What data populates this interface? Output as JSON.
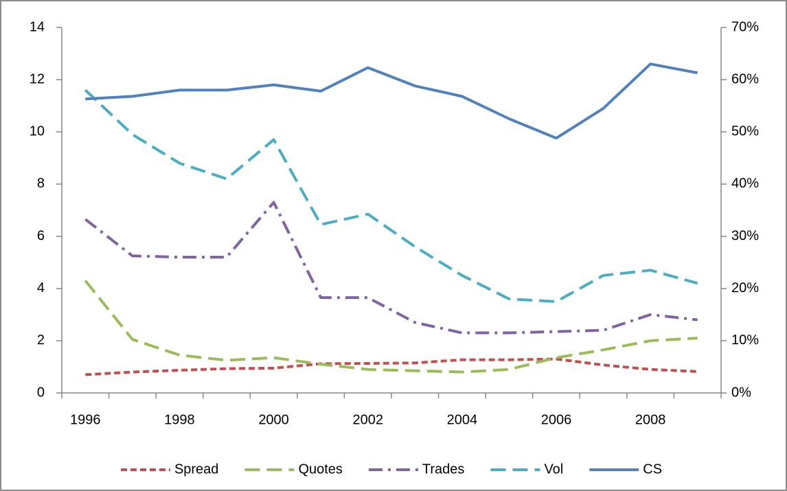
{
  "chart_data": {
    "type": "line",
    "categories": [
      "1996",
      null,
      "1998",
      null,
      "2000",
      null,
      "2002",
      null,
      "2004",
      null,
      "2006",
      null,
      "2008",
      null
    ],
    "ylim": [
      0,
      14
    ],
    "yticks": [
      0,
      2,
      4,
      6,
      8,
      10,
      12,
      14
    ],
    "y2lim": [
      0,
      70
    ],
    "y2ticks": [
      {
        "value": 0,
        "label": "0%"
      },
      {
        "value": 10,
        "label": "10%"
      },
      {
        "value": 20,
        "label": "20%"
      },
      {
        "value": 30,
        "label": "30%"
      },
      {
        "value": 40,
        "label": "40%"
      },
      {
        "value": 50,
        "label": "50%"
      },
      {
        "value": 60,
        "label": "60%"
      },
      {
        "value": 70,
        "label": "70%"
      }
    ],
    "legend": "bottom",
    "series": [
      {
        "name": "Spread",
        "color": "#c0504d",
        "dash": "dash",
        "values": [
          0.7,
          0.8,
          0.87,
          0.93,
          0.95,
          1.12,
          1.13,
          1.15,
          1.27,
          1.27,
          1.3,
          1.07,
          0.9,
          0.82
        ]
      },
      {
        "name": "Quotes",
        "color": "#9bbb59",
        "dash": "long-dash",
        "values": [
          4.3,
          2.05,
          1.45,
          1.25,
          1.35,
          1.1,
          0.9,
          0.85,
          0.8,
          0.9,
          1.35,
          1.65,
          2.0,
          2.1
        ]
      },
      {
        "name": "Trades",
        "color": "#8064a2",
        "dash": "dash-dot",
        "values": [
          6.65,
          5.25,
          5.2,
          5.2,
          7.3,
          3.65,
          3.65,
          2.7,
          2.3,
          2.3,
          2.35,
          2.4,
          3.0,
          2.8
        ]
      },
      {
        "name": "Vol",
        "color": "#4bacc6",
        "dash": "long-dash",
        "values": [
          11.6,
          9.9,
          8.8,
          8.2,
          9.7,
          6.45,
          6.85,
          5.6,
          4.5,
          3.6,
          3.5,
          4.5,
          4.7,
          4.2
        ]
      },
      {
        "name": "CS",
        "color": "#4f81bd",
        "dash": "solid",
        "axis": "y2",
        "values": [
          56.3,
          56.8,
          58,
          58,
          59,
          57.8,
          62.3,
          58.8,
          56.8,
          52.5,
          48.8,
          54.5,
          63,
          61.3
        ]
      }
    ]
  }
}
